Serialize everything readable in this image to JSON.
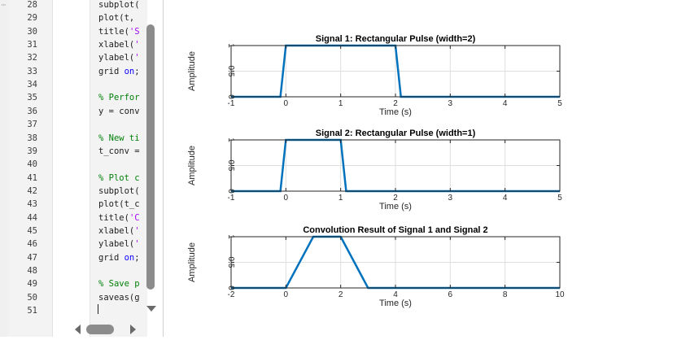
{
  "editor": {
    "line_numbers": [
      "28",
      "29",
      "30",
      "31",
      "32",
      "33",
      "34",
      "35",
      "36",
      "37",
      "38",
      "39",
      "40",
      "41",
      "42",
      "43",
      "44",
      "45",
      "46",
      "47",
      "48",
      "49",
      "50",
      "51"
    ],
    "code_lines": [
      {
        "text": "subplot(",
        "type": "code"
      },
      {
        "text": "plot(t,",
        "type": "code"
      },
      {
        "text": "title('S",
        "type": "str"
      },
      {
        "text": "xlabel('",
        "type": "str"
      },
      {
        "text": "ylabel('",
        "type": "str"
      },
      {
        "text": "grid on;",
        "type": "grid"
      },
      {
        "text": "",
        "type": "code"
      },
      {
        "text": "% Perfor",
        "type": "comment"
      },
      {
        "text": "y = conv",
        "type": "code"
      },
      {
        "text": "",
        "type": "code"
      },
      {
        "text": "% New ti",
        "type": "comment"
      },
      {
        "text": "t_conv =",
        "type": "code"
      },
      {
        "text": "",
        "type": "code"
      },
      {
        "text": "% Plot c",
        "type": "comment"
      },
      {
        "text": "subplot(",
        "type": "code"
      },
      {
        "text": "plot(t_c",
        "type": "code"
      },
      {
        "text": "title('C",
        "type": "str"
      },
      {
        "text": "xlabel('",
        "type": "str"
      },
      {
        "text": "ylabel('",
        "type": "str"
      },
      {
        "text": "grid on;",
        "type": "grid"
      },
      {
        "text": "",
        "type": "code"
      },
      {
        "text": "% Save p",
        "type": "comment"
      },
      {
        "text": "saveas(g",
        "type": "code"
      },
      {
        "text": "",
        "type": "code"
      }
    ],
    "colors": {
      "comment": "#028009",
      "string": "#a709f5",
      "keyword": "#0e00ff"
    }
  },
  "chart_data": [
    {
      "type": "line",
      "title": "Signal 1: Rectangular Pulse (width=2)",
      "xlabel": "Time (s)",
      "ylabel": "Amplitude",
      "xlim": [
        -1,
        5
      ],
      "ylim": [
        0,
        1
      ],
      "xticks": [
        -1,
        0,
        1,
        2,
        3,
        4,
        5
      ],
      "yticks": [
        0,
        0.5,
        1
      ],
      "grid": true,
      "color": "#0072BD",
      "series": [
        {
          "x": [
            -1,
            -0.1,
            0,
            2,
            2.1,
            5
          ],
          "y": [
            0,
            0,
            1,
            1,
            0,
            0
          ]
        }
      ]
    },
    {
      "type": "line",
      "title": "Signal 2: Rectangular Pulse (width=1)",
      "xlabel": "Time (s)",
      "ylabel": "Amplitude",
      "xlim": [
        -1,
        5
      ],
      "ylim": [
        0,
        1
      ],
      "xticks": [
        -1,
        0,
        1,
        2,
        3,
        4,
        5
      ],
      "yticks": [
        0,
        0.5,
        1
      ],
      "grid": true,
      "color": "#0072BD",
      "series": [
        {
          "x": [
            -1,
            -0.1,
            0,
            1,
            1.1,
            5
          ],
          "y": [
            0,
            0,
            1,
            1,
            0,
            0
          ]
        }
      ]
    },
    {
      "type": "line",
      "title": "Convolution Result of Signal 1 and Signal 2",
      "xlabel": "Time (s)",
      "ylabel": "Amplitude",
      "xlim": [
        -2,
        10
      ],
      "ylim": [
        0,
        1
      ],
      "xticks": [
        -2,
        0,
        2,
        4,
        6,
        8,
        10
      ],
      "yticks": [
        0,
        0.5,
        1
      ],
      "grid": true,
      "color": "#0072BD",
      "series": [
        {
          "x": [
            -2,
            0,
            1,
            2,
            3,
            10
          ],
          "y": [
            0,
            0,
            1,
            1,
            0,
            0
          ]
        }
      ]
    }
  ]
}
